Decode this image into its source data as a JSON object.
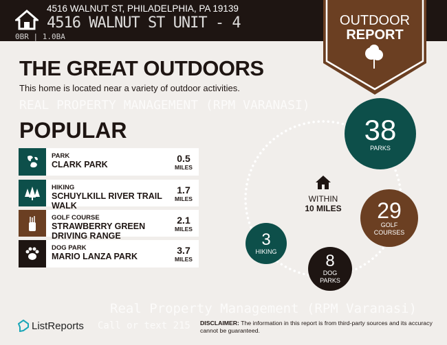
{
  "header": {
    "address": "4516 WALNUT ST, PHILADELPHIA, PA 19139",
    "overlay_address": "4516 WALNUT ST UNIT - 4",
    "overlay_beds_baths": "0BR | 1.0BA"
  },
  "badge": {
    "line1": "OUTDOOR",
    "line2": "REPORT"
  },
  "title": "THE GREAT OUTDOORS",
  "subtitle": "This home is located near a variety of outdoor activities.",
  "popular": {
    "heading": "POPULAR",
    "items": [
      {
        "category": "PARK",
        "name": "CLARK PARK",
        "distance": "0.5",
        "unit": "MILES",
        "icon": "park-icon",
        "color": "#0d4f4a"
      },
      {
        "category": "HIKING",
        "name": "SCHUYLKILL RIVER TRAIL WALK",
        "distance": "1.7",
        "unit": "MILES",
        "icon": "trees-icon",
        "color": "#0d4f4a"
      },
      {
        "category": "GOLF COURSE",
        "name": "STRAWBERRY GREEN DRIVING RANGE",
        "distance": "2.1",
        "unit": "MILES",
        "icon": "golf-bag-icon",
        "color": "#6b3f22"
      },
      {
        "category": "DOG PARK",
        "name": "MARIO LANZA PARK",
        "distance": "3.7",
        "unit": "MILES",
        "icon": "paw-icon",
        "color": "#1e1512"
      }
    ]
  },
  "nearby": {
    "within_line1": "WITHIN",
    "within_line2": "10 MILES",
    "counts": [
      {
        "value": "38",
        "label": "PARKS",
        "color": "#0d4f4a"
      },
      {
        "value": "29",
        "label": "GOLF COURSES",
        "color": "#6b3f22"
      },
      {
        "value": "8",
        "label": "DOG PARKS",
        "color": "#1e1512"
      },
      {
        "value": "3",
        "label": "HIKING",
        "color": "#0d4f4a"
      }
    ]
  },
  "footer": {
    "logo": "ListReports",
    "disclaimer_label": "DISCLAIMER:",
    "disclaimer": " The information in this report is from third-party sources and its accuracy cannot be guaranteed."
  },
  "watermark": {
    "line1": "Real Property Management (RPM Varanasi)",
    "line2": "Call or text 215",
    "diagonal": "REAL PROPERTY MANAGEMENT (RPM VARANASI)"
  }
}
